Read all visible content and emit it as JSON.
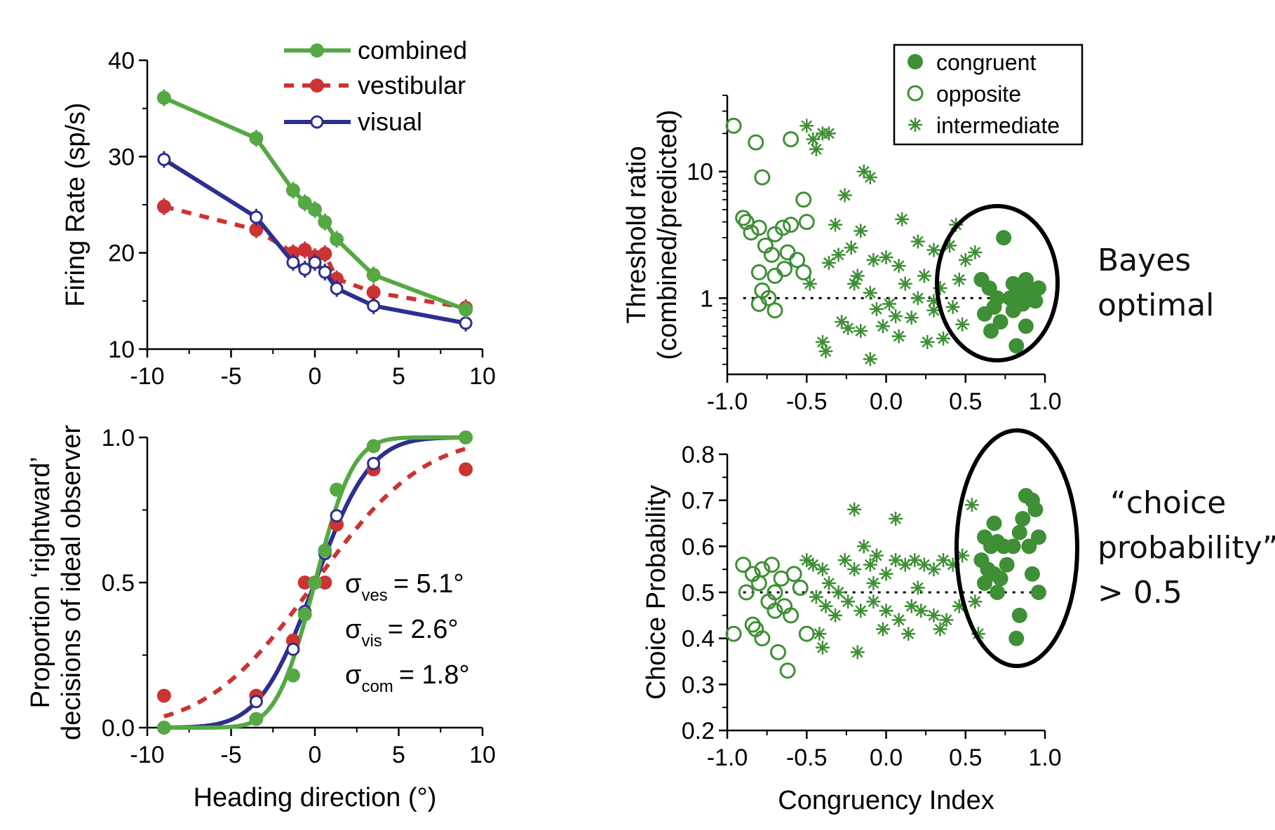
{
  "chart_data": [
    {
      "type": "line",
      "xlabel": "",
      "ylabel": "Firing Rate (sp/s)",
      "xlim": [
        -10,
        10
      ],
      "ylim": [
        10,
        40
      ],
      "x_ticks": [
        "-10",
        "-5",
        "0",
        "5",
        "10"
      ],
      "y_ticks": [
        "10",
        "20",
        "30",
        "40"
      ],
      "legend_position": "top-right",
      "grid": false,
      "series": [
        {
          "name": "combined",
          "color": "#55a843",
          "style": "solid line, filled circles",
          "x": [
            -9,
            -3.5,
            -1.3,
            -0.6,
            0,
            0.6,
            1.3,
            3.5,
            9
          ],
          "y": [
            36.1,
            31.9,
            26.5,
            25.2,
            24.5,
            23.2,
            21.4,
            17.7,
            14.1
          ]
        },
        {
          "name": "vestibular",
          "color": "#cc3333",
          "style": "dashed line, filled circles",
          "x": [
            -9,
            -3.5,
            -1.3,
            -0.6,
            0,
            0.6,
            1.3,
            3.5,
            9
          ],
          "y": [
            24.8,
            22.4,
            20.0,
            20.3,
            19.6,
            19.9,
            17.3,
            15.9,
            14.3
          ]
        },
        {
          "name": "visual",
          "color": "#2c2f8f",
          "style": "solid line, open circles",
          "x": [
            -9,
            -3.5,
            -1.3,
            -0.6,
            0,
            0.6,
            1.3,
            3.5,
            9
          ],
          "y": [
            29.7,
            23.7,
            19.0,
            18.3,
            19.0,
            18.0,
            16.3,
            14.5,
            12.7
          ]
        }
      ]
    },
    {
      "type": "line",
      "xlabel": "Heading direction (°)",
      "ylabel": "Proportion ‘rightward’ decisions of ideal observer",
      "xlim": [
        -10,
        10
      ],
      "ylim": [
        0,
        1
      ],
      "x_ticks": [
        "-10",
        "-5",
        "0",
        "5",
        "10"
      ],
      "y_ticks": [
        "0.0",
        "0.5",
        "1.0"
      ],
      "grid": false,
      "annotations": [
        {
          "symbol": "σ",
          "sub": "ves",
          "text": "= 5.1°"
        },
        {
          "symbol": "σ",
          "sub": "vis",
          "text": "= 2.6°"
        },
        {
          "symbol": "σ",
          "sub": "com",
          "text": "= 1.8°"
        }
      ],
      "fits": [
        {
          "series": "combined",
          "sigma": 1.8,
          "color": "#55a843"
        },
        {
          "series": "vestibular",
          "sigma": 5.1,
          "color": "#cc3333"
        },
        {
          "series": "visual",
          "sigma": 2.6,
          "color": "#2c2f8f"
        }
      ],
      "series": [
        {
          "name": "combined",
          "x": [
            -9,
            -3.5,
            -1.3,
            -0.6,
            0,
            0.6,
            1.3,
            3.5,
            9
          ],
          "y": [
            0.0,
            0.03,
            0.18,
            0.39,
            0.5,
            0.61,
            0.82,
            0.97,
            1.0
          ]
        },
        {
          "name": "vestibular",
          "x": [
            -9,
            -3.5,
            -1.3,
            -0.6,
            0,
            0.6,
            1.3,
            3.5,
            9
          ],
          "y": [
            0.11,
            0.11,
            0.3,
            0.5,
            0.5,
            0.5,
            0.7,
            0.89,
            0.89
          ]
        },
        {
          "name": "visual",
          "x": [
            -9,
            -3.5,
            -1.3,
            -0.6,
            0,
            0.6,
            1.3,
            3.5,
            9
          ],
          "y": [
            0.0,
            0.09,
            0.27,
            0.4,
            0.5,
            0.6,
            0.73,
            0.91,
            1.0
          ]
        }
      ]
    },
    {
      "type": "scatter",
      "xlabel": "",
      "ylabel": "Threshold ratio (combined/predicted)",
      "xlim": [
        -1,
        1
      ],
      "ylim": [
        0.25,
        40
      ],
      "y_scale": "log",
      "x_ticks": [
        "-1.0",
        "-0.5",
        "0.0",
        "0.5",
        "1.0"
      ],
      "y_ticks": [
        "1",
        "10"
      ],
      "reference_line": {
        "y": 1,
        "style": "dotted"
      },
      "legend_position": "top-right",
      "color": "#3e8f35",
      "series": [
        {
          "name": "congruent",
          "marker": "filled circle",
          "points": [
            [
              0.74,
              3.0
            ],
            [
              0.6,
              1.4
            ],
            [
              0.65,
              1.2
            ],
            [
              0.7,
              1.0
            ],
            [
              0.68,
              0.85
            ],
            [
              0.62,
              0.75
            ],
            [
              0.72,
              0.65
            ],
            [
              0.66,
              0.55
            ],
            [
              0.8,
              1.3
            ],
            [
              0.84,
              1.1
            ],
            [
              0.88,
              1.4
            ],
            [
              0.9,
              1.2
            ],
            [
              0.92,
              1.0
            ],
            [
              0.86,
              0.9
            ],
            [
              0.8,
              0.8
            ],
            [
              0.78,
              1.0
            ],
            [
              0.88,
              0.6
            ],
            [
              0.82,
              0.42
            ],
            [
              0.94,
              0.95
            ],
            [
              0.96,
              1.2
            ]
          ]
        },
        {
          "name": "opposite",
          "marker": "open circle",
          "points": [
            [
              -0.96,
              23
            ],
            [
              -0.82,
              17
            ],
            [
              -0.6,
              18
            ],
            [
              -0.78,
              9
            ],
            [
              -0.52,
              6
            ],
            [
              -0.9,
              4.3
            ],
            [
              -0.88,
              4.0
            ],
            [
              -0.85,
              3.3
            ],
            [
              -0.8,
              3.6
            ],
            [
              -0.76,
              2.6
            ],
            [
              -0.7,
              3.2
            ],
            [
              -0.65,
              3.6
            ],
            [
              -0.6,
              3.8
            ],
            [
              -0.5,
              4.0
            ],
            [
              -0.72,
              2.2
            ],
            [
              -0.62,
              2.3
            ],
            [
              -0.56,
              2.0
            ],
            [
              -0.8,
              1.6
            ],
            [
              -0.7,
              1.5
            ],
            [
              -0.78,
              1.15
            ],
            [
              -0.74,
              1.0
            ],
            [
              -0.8,
              0.9
            ],
            [
              -0.7,
              0.8
            ],
            [
              -0.64,
              1.7
            ],
            [
              -0.52,
              1.6
            ]
          ]
        },
        {
          "name": "intermediate",
          "marker": "asterisk",
          "points": [
            [
              -0.5,
              23
            ],
            [
              -0.46,
              18
            ],
            [
              -0.4,
              20
            ],
            [
              -0.36,
              20
            ],
            [
              -0.44,
              15
            ],
            [
              -0.14,
              10
            ],
            [
              -0.1,
              9
            ],
            [
              -0.26,
              6.5
            ],
            [
              -0.32,
              3.8
            ],
            [
              -0.16,
              3.4
            ],
            [
              -0.36,
              1.9
            ],
            [
              -0.3,
              2.2
            ],
            [
              -0.22,
              2.5
            ],
            [
              -0.18,
              1.5
            ],
            [
              -0.08,
              2.0
            ],
            [
              0.0,
              2.1
            ],
            [
              0.08,
              1.8
            ],
            [
              0.1,
              4.2
            ],
            [
              0.2,
              2.8
            ],
            [
              0.3,
              2.4
            ],
            [
              0.4,
              2.6
            ],
            [
              0.44,
              3.8
            ],
            [
              0.5,
              2.0
            ],
            [
              0.56,
              2.3
            ],
            [
              -0.2,
              1.3
            ],
            [
              -0.1,
              1.1
            ],
            [
              0.02,
              0.9
            ],
            [
              0.12,
              1.3
            ],
            [
              0.24,
              1.5
            ],
            [
              0.34,
              1.2
            ],
            [
              0.46,
              1.4
            ],
            [
              -0.28,
              0.65
            ],
            [
              -0.24,
              0.58
            ],
            [
              -0.16,
              0.55
            ],
            [
              -0.02,
              0.6
            ],
            [
              0.06,
              0.72
            ],
            [
              0.16,
              0.7
            ],
            [
              0.3,
              0.8
            ],
            [
              -0.4,
              0.45
            ],
            [
              -0.38,
              0.38
            ],
            [
              -0.1,
              0.33
            ],
            [
              0.26,
              0.45
            ],
            [
              0.36,
              0.48
            ],
            [
              -0.48,
              1.3
            ],
            [
              0.2,
              1.0
            ],
            [
              0.3,
              0.95
            ],
            [
              0.42,
              0.85
            ],
            [
              0.48,
              0.62
            ],
            [
              -0.06,
              0.82
            ],
            [
              0.08,
              0.5
            ]
          ]
        }
      ]
    },
    {
      "type": "scatter",
      "xlabel": "Congruency Index",
      "ylabel": "Choice Probability",
      "xlim": [
        -1,
        1
      ],
      "ylim": [
        0.2,
        0.8
      ],
      "x_ticks": [
        "-1.0",
        "-0.5",
        "0.0",
        "0.5",
        "1.0"
      ],
      "y_ticks": [
        "0.2",
        "0.3",
        "0.4",
        "0.5",
        "0.6",
        "0.7",
        "0.8"
      ],
      "reference_line": {
        "y": 0.5,
        "style": "dotted"
      },
      "color": "#3e8f35",
      "series": [
        {
          "name": "congruent",
          "marker": "filled circle",
          "points": [
            [
              0.68,
              0.65
            ],
            [
              0.62,
              0.62
            ],
            [
              0.66,
              0.6
            ],
            [
              0.7,
              0.61
            ],
            [
              0.74,
              0.6
            ],
            [
              0.6,
              0.57
            ],
            [
              0.64,
              0.55
            ],
            [
              0.68,
              0.54
            ],
            [
              0.72,
              0.53
            ],
            [
              0.76,
              0.56
            ],
            [
              0.8,
              0.6
            ],
            [
              0.84,
              0.63
            ],
            [
              0.88,
              0.71
            ],
            [
              0.92,
              0.7
            ],
            [
              0.94,
              0.68
            ],
            [
              0.86,
              0.66
            ],
            [
              0.9,
              0.6
            ],
            [
              0.96,
              0.62
            ],
            [
              0.92,
              0.54
            ],
            [
              0.96,
              0.5
            ],
            [
              0.84,
              0.45
            ],
            [
              0.82,
              0.4
            ],
            [
              0.62,
              0.52
            ],
            [
              0.7,
              0.5
            ]
          ]
        },
        {
          "name": "opposite",
          "marker": "open circle",
          "points": [
            [
              -0.96,
              0.41
            ],
            [
              -0.9,
              0.56
            ],
            [
              -0.88,
              0.5
            ],
            [
              -0.84,
              0.54
            ],
            [
              -0.8,
              0.52
            ],
            [
              -0.78,
              0.55
            ],
            [
              -0.72,
              0.56
            ],
            [
              -0.7,
              0.5
            ],
            [
              -0.66,
              0.53
            ],
            [
              -0.74,
              0.48
            ],
            [
              -0.7,
              0.46
            ],
            [
              -0.64,
              0.47
            ],
            [
              -0.6,
              0.45
            ],
            [
              -0.58,
              0.54
            ],
            [
              -0.54,
              0.51
            ],
            [
              -0.82,
              0.42
            ],
            [
              -0.78,
              0.4
            ],
            [
              -0.68,
              0.37
            ],
            [
              -0.62,
              0.33
            ],
            [
              -0.5,
              0.41
            ],
            [
              -0.84,
              0.43
            ]
          ]
        },
        {
          "name": "intermediate",
          "marker": "asterisk",
          "points": [
            [
              -0.5,
              0.57
            ],
            [
              -0.46,
              0.56
            ],
            [
              -0.4,
              0.55
            ],
            [
              -0.36,
              0.52
            ],
            [
              -0.3,
              0.5
            ],
            [
              -0.26,
              0.57
            ],
            [
              -0.2,
              0.55
            ],
            [
              -0.14,
              0.6
            ],
            [
              -0.1,
              0.56
            ],
            [
              -0.06,
              0.58
            ],
            [
              0.0,
              0.54
            ],
            [
              0.06,
              0.57
            ],
            [
              0.12,
              0.56
            ],
            [
              0.18,
              0.57
            ],
            [
              0.24,
              0.56
            ],
            [
              0.3,
              0.55
            ],
            [
              0.36,
              0.57
            ],
            [
              0.42,
              0.56
            ],
            [
              0.48,
              0.58
            ],
            [
              0.54,
              0.69
            ],
            [
              -0.2,
              0.68
            ],
            [
              0.06,
              0.66
            ],
            [
              -0.44,
              0.49
            ],
            [
              -0.38,
              0.47
            ],
            [
              -0.32,
              0.45
            ],
            [
              -0.24,
              0.48
            ],
            [
              -0.16,
              0.46
            ],
            [
              -0.08,
              0.48
            ],
            [
              0.0,
              0.46
            ],
            [
              0.08,
              0.44
            ],
            [
              0.16,
              0.47
            ],
            [
              0.22,
              0.46
            ],
            [
              0.3,
              0.45
            ],
            [
              0.38,
              0.44
            ],
            [
              0.46,
              0.47
            ],
            [
              -0.42,
              0.41
            ],
            [
              -0.4,
              0.38
            ],
            [
              -0.18,
              0.37
            ],
            [
              -0.02,
              0.42
            ],
            [
              0.14,
              0.41
            ],
            [
              0.34,
              0.42
            ],
            [
              0.56,
              0.48
            ],
            [
              0.58,
              0.41
            ],
            [
              -0.08,
              0.52
            ],
            [
              0.2,
              0.51
            ]
          ]
        }
      ]
    }
  ],
  "annotations": {
    "bayes_line1": "Bayes",
    "bayes_line2": "optimal",
    "choice_line1": "“choice",
    "choice_line2": "probability”",
    "choice_line3": "> 0.5"
  }
}
